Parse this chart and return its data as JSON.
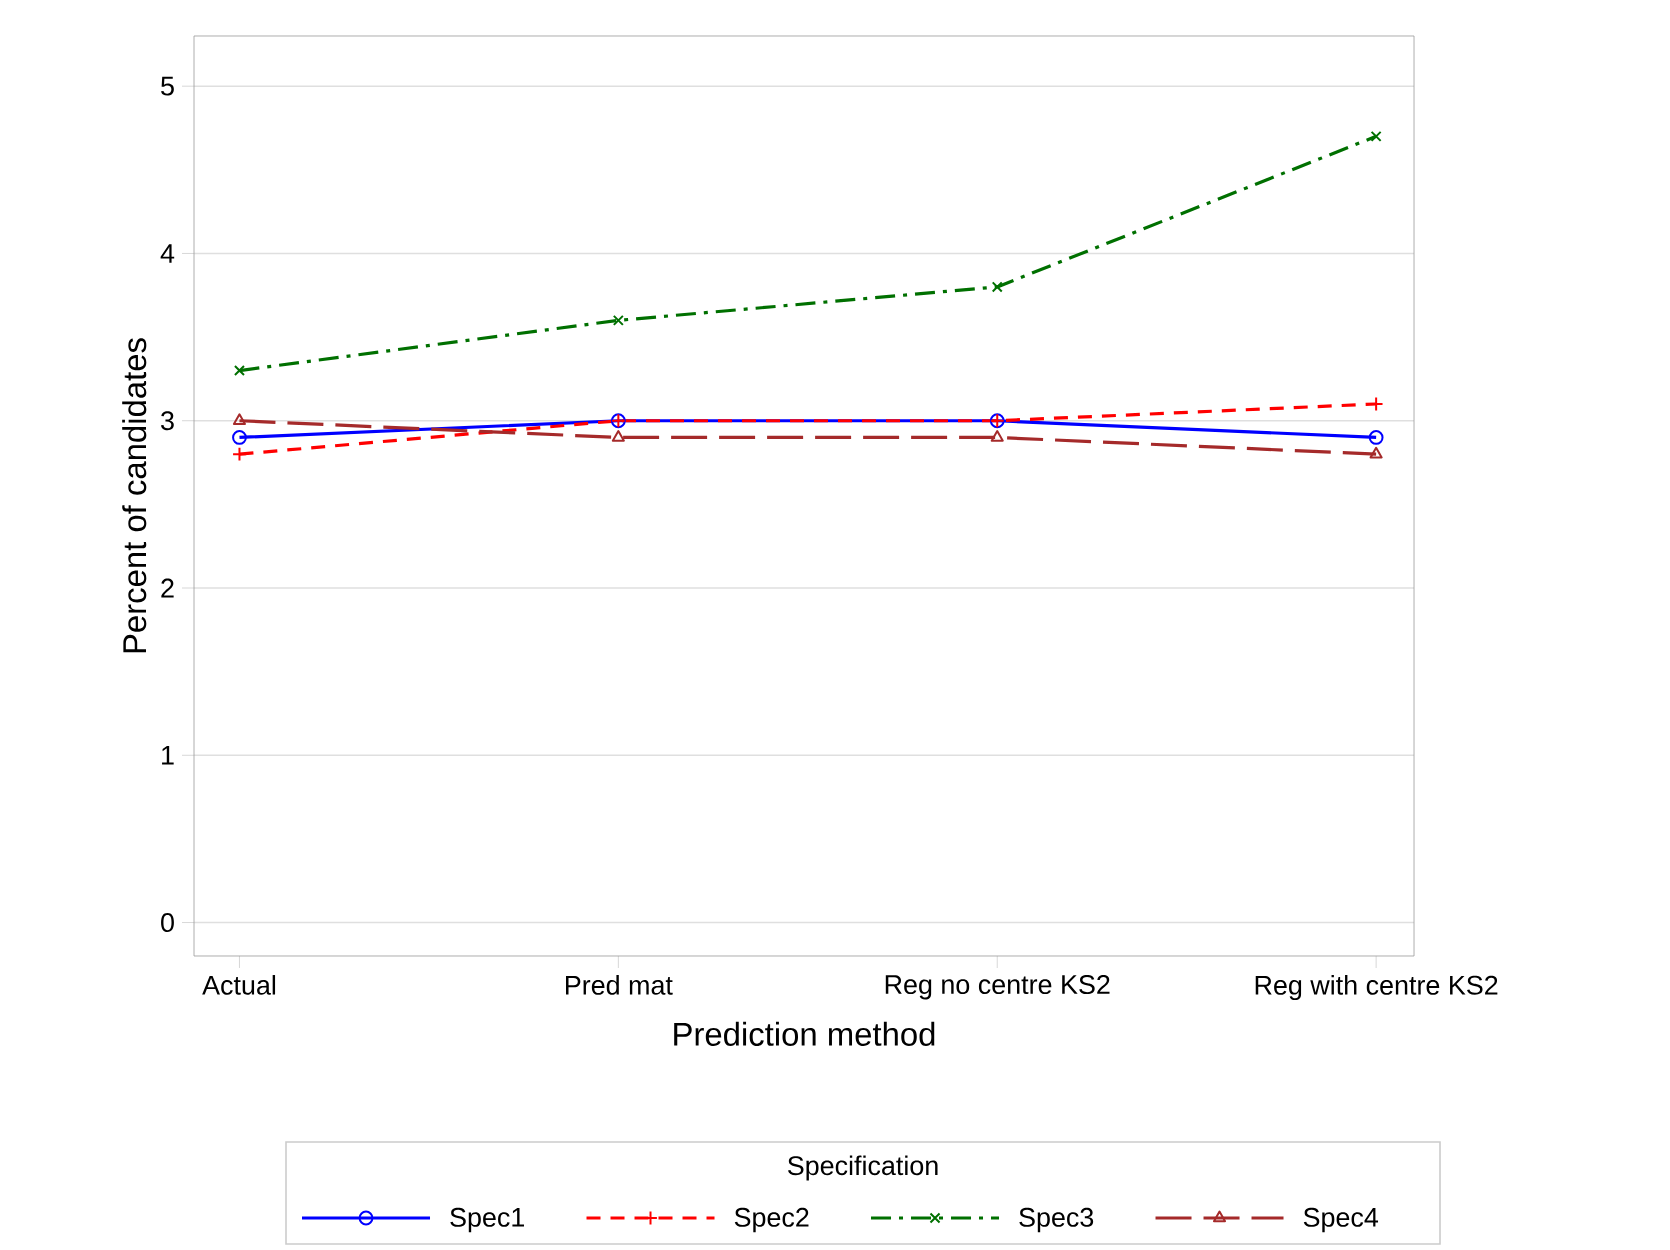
{
  "chart_data": {
    "type": "line",
    "xlabel": "Prediction method",
    "ylabel": "Percent of candidates",
    "legend_title": "Specification",
    "categories": [
      "Actual",
      "Pred mat",
      "Reg no centre KS2",
      "Reg with centre KS2"
    ],
    "series": [
      {
        "name": "Spec1",
        "color": "#0000ff",
        "values": [
          2.9,
          3.0,
          3.0,
          2.9
        ],
        "marker": "circle",
        "line_style": "solid"
      },
      {
        "name": "Spec2",
        "color": "#ff0000",
        "values": [
          2.8,
          3.0,
          3.0,
          3.1
        ],
        "marker": "plus",
        "line_style": "dashed"
      },
      {
        "name": "Spec3",
        "color": "#007000",
        "values": [
          3.3,
          3.6,
          3.8,
          4.7
        ],
        "marker": "cross",
        "line_style": "dashdot"
      },
      {
        "name": "Spec4",
        "color": "#a52a2a",
        "values": [
          3.0,
          2.9,
          2.9,
          2.8
        ],
        "marker": "triangle",
        "line_style": "longdash"
      }
    ],
    "ylim": [
      -0.2,
      5.3
    ],
    "yticks": [
      0,
      1,
      2,
      3,
      4,
      5
    ],
    "grid": "y",
    "legend": "bottom"
  }
}
